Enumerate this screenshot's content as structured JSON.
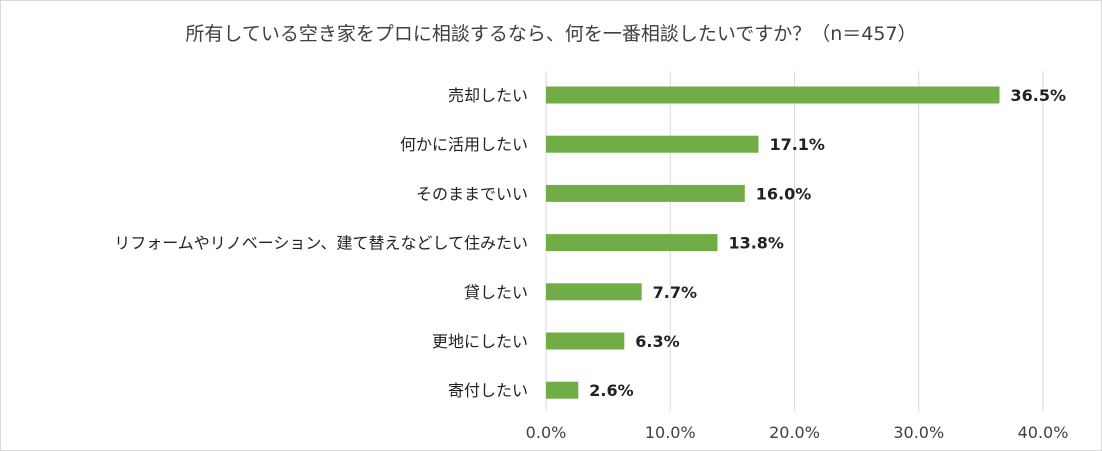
{
  "chart_data": {
    "type": "bar",
    "orientation": "horizontal",
    "title": "所有している空き家をプロに相談するなら、何を一番相談したいですか？（n＝457）",
    "categories": [
      "売却したい",
      "何かに活用したい",
      "そのままでいい",
      "リフォームやリノベーション、建て替えなどして住みたい",
      "貸したい",
      "更地にしたい",
      "寄付したい"
    ],
    "values": [
      36.5,
      17.1,
      16.0,
      13.8,
      7.7,
      6.3,
      2.6
    ],
    "value_labels": [
      "36.5%",
      "17.1%",
      "16.0%",
      "13.8%",
      "7.7%",
      "6.3%",
      "2.6%"
    ],
    "xlim": [
      0,
      40
    ],
    "x_ticks": [
      0,
      10,
      20,
      30,
      40
    ],
    "x_tick_labels": [
      "0.0%",
      "10.0%",
      "20.0%",
      "30.0%",
      "40.0%"
    ],
    "grid": true,
    "legend": "none",
    "bar_color": "#70ad47",
    "grid_color": "#d9d9d9"
  }
}
